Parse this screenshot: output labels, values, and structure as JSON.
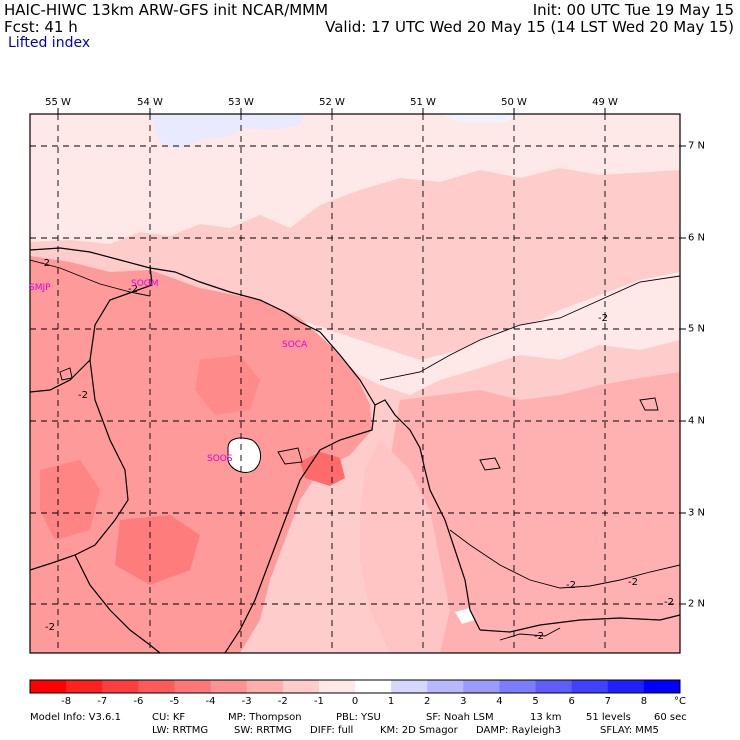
{
  "header": {
    "line1_left": "HAIC-HIWC 13km ARW-GFS init   NCAR/MMM",
    "line1_right": "Init: 00 UTC Tue 19 May 15",
    "line2_left": "Fcst:   41 h",
    "line2_right": "Valid: 17 UTC Wed 20 May 15 (14 LST Wed 20 May 15)",
    "field_name": "Lifted index"
  },
  "map": {
    "longitude_labels": [
      "55 W",
      "54 W",
      "53 W",
      "52 W",
      "51 W",
      "50 W",
      "49 W"
    ],
    "latitude_labels": [
      "7 N",
      "6 N",
      "5 N",
      "4 N",
      "3 N",
      "2 N"
    ],
    "stations": [
      "SMJP",
      "SOGM",
      "SOCA",
      "SOOS"
    ],
    "contour_labels": [
      "-2",
      "-2",
      "-2",
      "-2",
      "-2",
      "-2",
      "-2",
      "-2",
      "-2"
    ],
    "colors": {
      "land_border": "#000000",
      "gridline": "#000000",
      "station_label": "#e000e0"
    }
  },
  "colorbar": {
    "labels": [
      "-8",
      "-7",
      "-6",
      "-5",
      "-4",
      "-3",
      "-2",
      "-1",
      "0",
      "1",
      "2",
      "3",
      "4",
      "5",
      "6",
      "7",
      "8"
    ],
    "unit": "°C",
    "colors": [
      "#ff0000",
      "#ff2020",
      "#ff3e3e",
      "#ff5a5a",
      "#ff7676",
      "#ff9292",
      "#ffaeae",
      "#ffcccc",
      "#ffe8e8",
      "#ffffff",
      "#d6d6ff",
      "#b8b8ff",
      "#9a9aff",
      "#7c7cff",
      "#5e5eff",
      "#4040ff",
      "#2020ff",
      "#0000ff"
    ]
  },
  "model_info": {
    "line1": [
      "Model Info: V3.6.1",
      "CU: KF",
      "MP: Thompson",
      "PBL: YSU",
      "SF: Noah LSM",
      "13 km",
      "51 levels",
      "60 sec"
    ],
    "line2": [
      "LW: RRTMG",
      "SW: RRTMG",
      "DIFF: full",
      "KM: 2D Smagor",
      "DAMP: Rayleigh3",
      "SFLAY: MM5"
    ]
  }
}
